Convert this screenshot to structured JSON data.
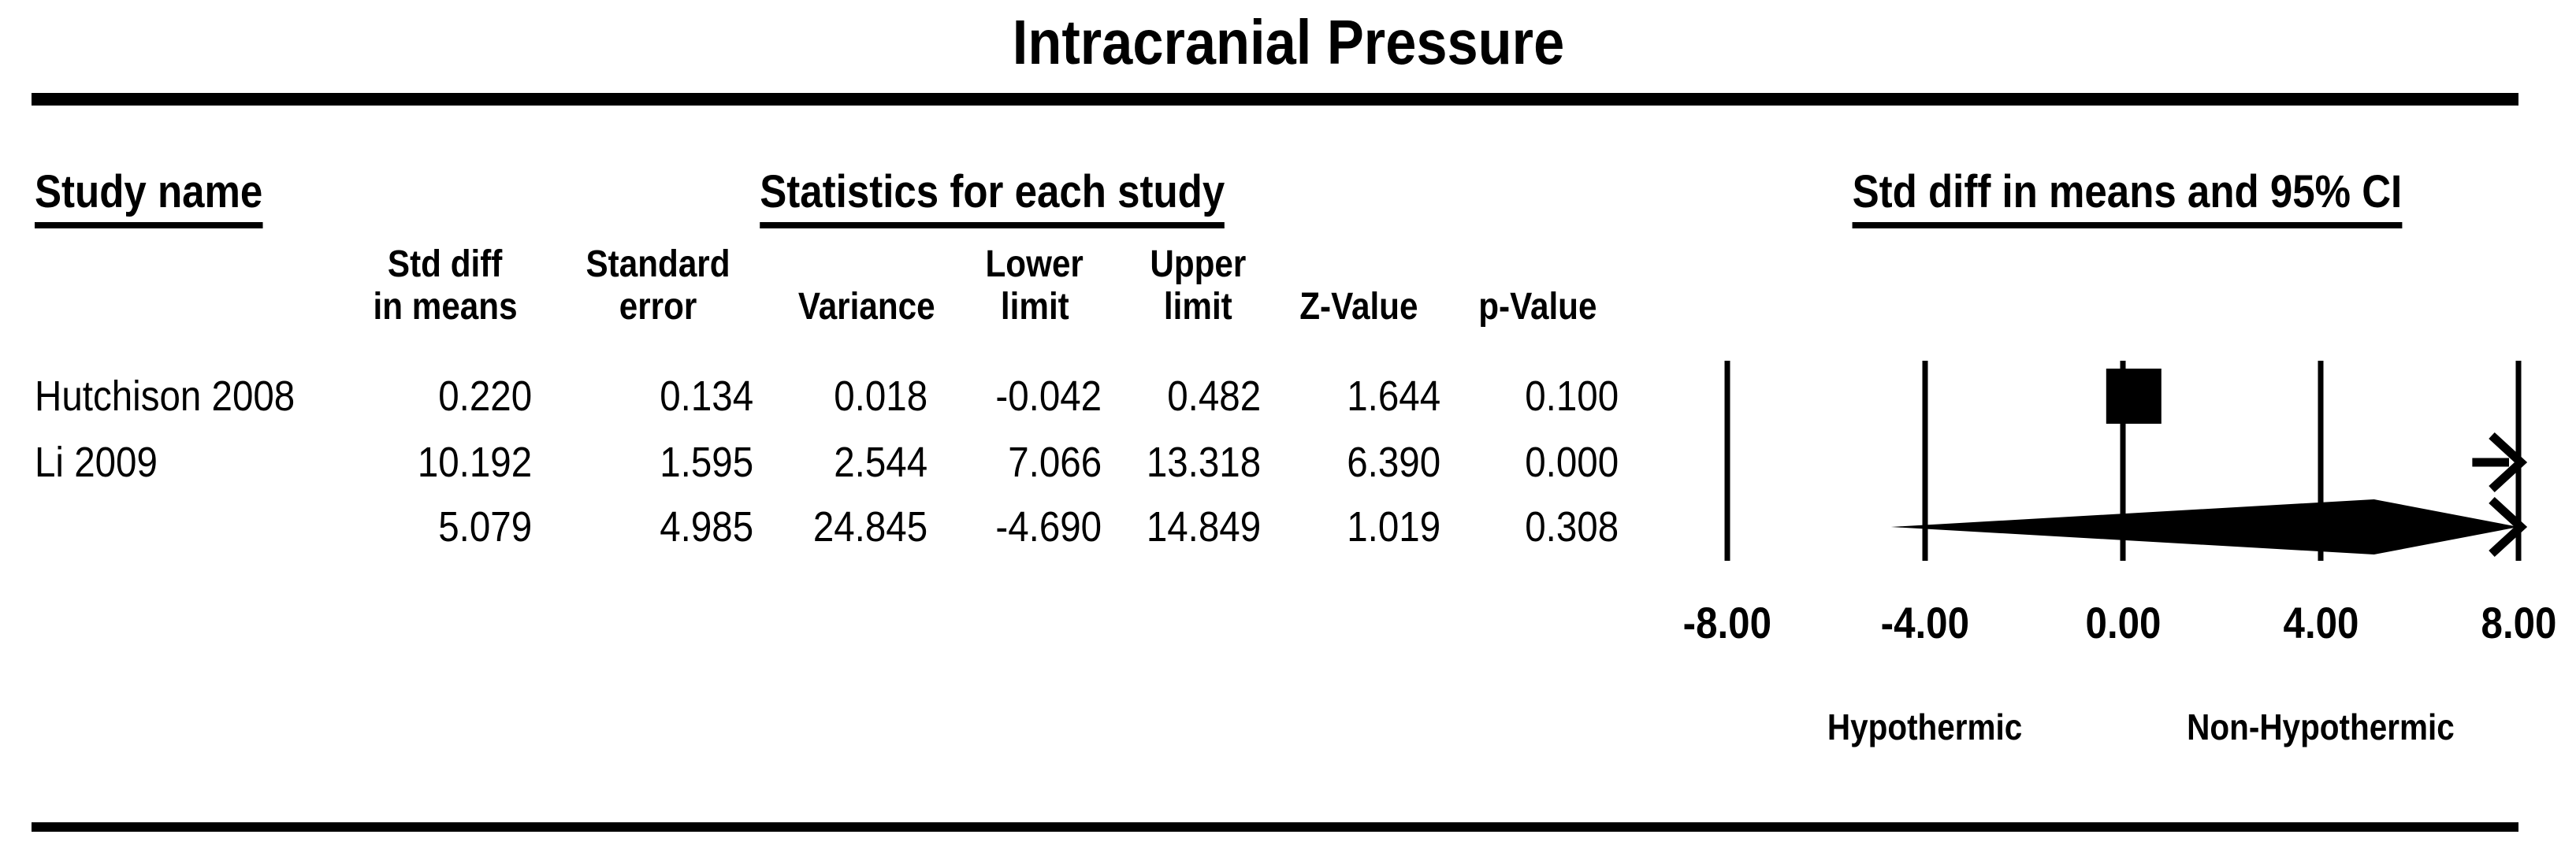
{
  "title": "Intracranial Pressure",
  "headers": {
    "study_name": "Study name",
    "statistics": "Statistics for each study",
    "plot": "Std diff in means and 95% CI"
  },
  "table": {
    "columns": [
      {
        "line1": "Std diff",
        "line2": "in means"
      },
      {
        "line1": "Standard",
        "line2": "error"
      },
      {
        "line1": "",
        "line2": "Variance"
      },
      {
        "line1": "Lower",
        "line2": "limit"
      },
      {
        "line1": "Upper",
        "line2": "limit"
      },
      {
        "line1": "",
        "line2": "Z-Value"
      },
      {
        "line1": "",
        "line2": "p-Value"
      }
    ],
    "rows": [
      {
        "name": "Hutchison 2008",
        "values": [
          "0.220",
          "0.134",
          "0.018",
          "-0.042",
          "0.482",
          "1.644",
          "0.100"
        ]
      },
      {
        "name": "Li 2009",
        "values": [
          "10.192",
          "1.595",
          "2.544",
          "7.066",
          "13.318",
          "6.390",
          "0.000"
        ]
      },
      {
        "name": "",
        "values": [
          "5.079",
          "4.985",
          "24.845",
          "-4.690",
          "14.849",
          "1.019",
          "0.308"
        ]
      }
    ]
  },
  "chart_data": {
    "type": "forest",
    "title": "Intracranial Pressure",
    "effect_label": "Std diff in means and 95% CI",
    "axis": {
      "min": -8,
      "max": 8,
      "tick_values": [
        -8,
        -4,
        0,
        4,
        8
      ],
      "ticks": [
        "-8.00",
        "-4.00",
        "0.00",
        "4.00",
        "8.00"
      ]
    },
    "direction_labels": {
      "left": "Hypothermic",
      "right": "Non-Hypothermic",
      "left_at": -4,
      "right_at": 4
    },
    "studies": [
      {
        "name": "Hutchison 2008",
        "std_diff": 0.22,
        "lower": -0.042,
        "upper": 0.482,
        "marker": "square"
      },
      {
        "name": "Li 2009",
        "std_diff": 10.192,
        "lower": 7.066,
        "upper": 13.318,
        "marker": "offscale-arrow-right"
      }
    ],
    "summary": {
      "std_diff": 5.079,
      "lower": -4.69,
      "upper": 14.849,
      "marker": "diamond-clipped-right"
    }
  }
}
